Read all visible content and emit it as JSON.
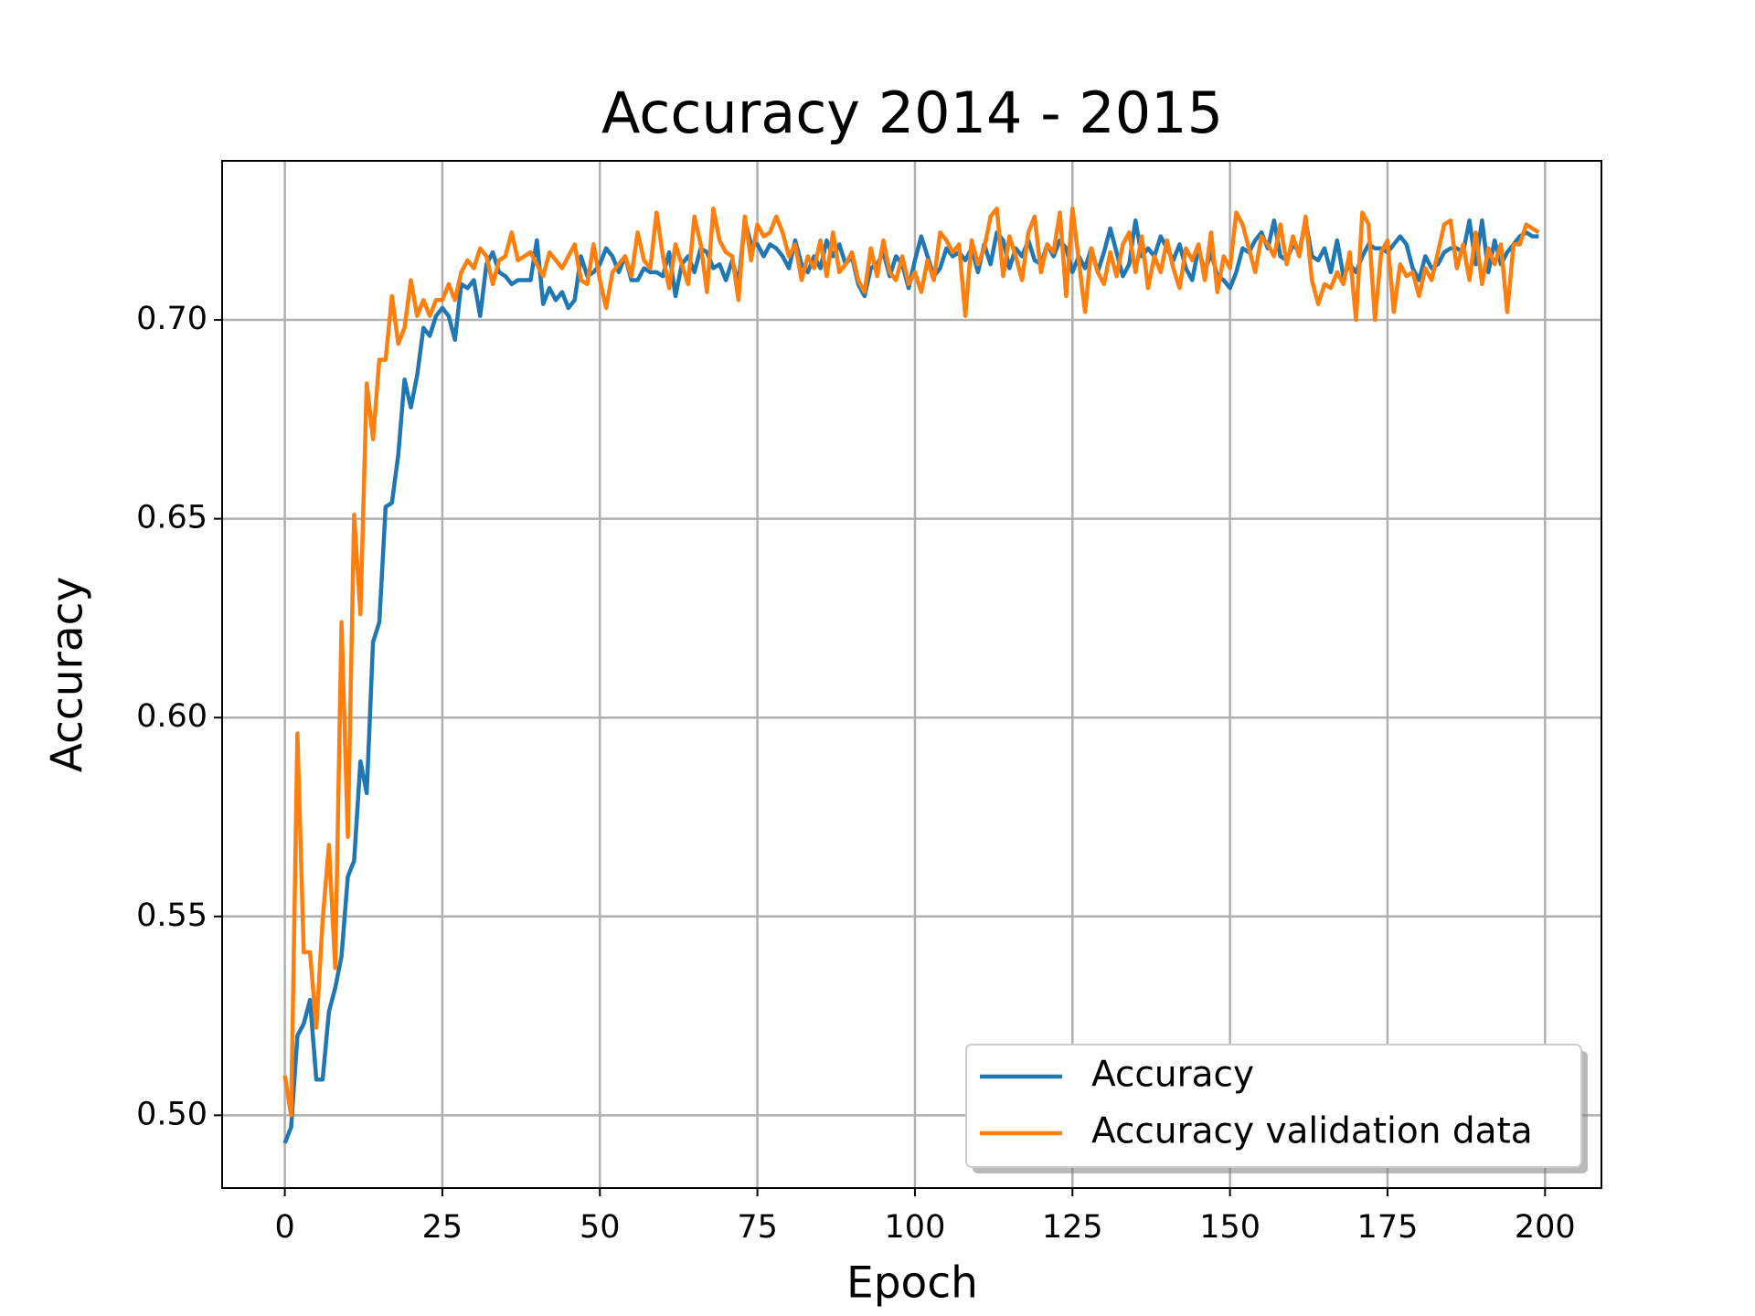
{
  "chart_data": {
    "type": "line",
    "title": "Accuracy 2014 - 2015",
    "x_label": "Epoch",
    "y_label": "Accuracy",
    "x": [
      0,
      1,
      2,
      3,
      4,
      5,
      6,
      7,
      8,
      9,
      10,
      11,
      12,
      13,
      14,
      15,
      16,
      17,
      18,
      19,
      20,
      21,
      22,
      23,
      24,
      25,
      26,
      27,
      28,
      29,
      30,
      31,
      32,
      33,
      34,
      35,
      36,
      37,
      38,
      39,
      40,
      41,
      42,
      43,
      44,
      45,
      46,
      47,
      48,
      49,
      50,
      51,
      52,
      53,
      54,
      55,
      56,
      57,
      58,
      59,
      60,
      61,
      62,
      63,
      64,
      65,
      66,
      67,
      68,
      69,
      70,
      71,
      72,
      73,
      74,
      75,
      76,
      77,
      78,
      79,
      80,
      81,
      82,
      83,
      84,
      85,
      86,
      87,
      88,
      89,
      90,
      91,
      92,
      93,
      94,
      95,
      96,
      97,
      98,
      99,
      100,
      101,
      102,
      103,
      104,
      105,
      106,
      107,
      108,
      109,
      110,
      111,
      112,
      113,
      114,
      115,
      116,
      117,
      118,
      119,
      120,
      121,
      122,
      123,
      124,
      125,
      126,
      127,
      128,
      129,
      130,
      131,
      132,
      133,
      134,
      135,
      136,
      137,
      138,
      139,
      140,
      141,
      142,
      143,
      144,
      145,
      146,
      147,
      148,
      149,
      150,
      151,
      152,
      153,
      154,
      155,
      156,
      157,
      158,
      159,
      160,
      161,
      162,
      163,
      164,
      165,
      166,
      167,
      168,
      169,
      170,
      171,
      172,
      173,
      174,
      175,
      176,
      177,
      178,
      179,
      180,
      181,
      182,
      183,
      184,
      185,
      186,
      187,
      188,
      189,
      190,
      191,
      192,
      193,
      194,
      195,
      196,
      197,
      198,
      199
    ],
    "series": [
      {
        "name": "Accuracy",
        "color": "#1f77b4",
        "values": [
          0.493,
          0.497,
          0.52,
          0.523,
          0.529,
          0.509,
          0.509,
          0.526,
          0.532,
          0.54,
          0.56,
          0.564,
          0.589,
          0.581,
          0.619,
          0.624,
          0.653,
          0.654,
          0.666,
          0.685,
          0.678,
          0.686,
          0.698,
          0.696,
          0.701,
          0.703,
          0.701,
          0.695,
          0.709,
          0.708,
          0.71,
          0.701,
          0.714,
          0.717,
          0.712,
          0.711,
          0.709,
          0.71,
          0.71,
          0.71,
          0.72,
          0.704,
          0.708,
          0.705,
          0.707,
          0.703,
          0.705,
          0.716,
          0.711,
          0.712,
          0.714,
          0.718,
          0.716,
          0.712,
          0.716,
          0.71,
          0.71,
          0.713,
          0.712,
          0.712,
          0.711,
          0.717,
          0.706,
          0.714,
          0.716,
          0.712,
          0.718,
          0.717,
          0.713,
          0.714,
          0.71,
          0.715,
          0.709,
          0.725,
          0.719,
          0.719,
          0.716,
          0.719,
          0.718,
          0.716,
          0.713,
          0.72,
          0.714,
          0.712,
          0.716,
          0.713,
          0.72,
          0.716,
          0.719,
          0.714,
          0.716,
          0.709,
          0.706,
          0.713,
          0.714,
          0.717,
          0.711,
          0.716,
          0.714,
          0.708,
          0.715,
          0.721,
          0.716,
          0.711,
          0.713,
          0.718,
          0.716,
          0.717,
          0.715,
          0.718,
          0.712,
          0.719,
          0.714,
          0.722,
          0.72,
          0.713,
          0.718,
          0.716,
          0.72,
          0.715,
          0.714,
          0.719,
          0.716,
          0.72,
          0.718,
          0.712,
          0.716,
          0.713,
          0.718,
          0.712,
          0.717,
          0.723,
          0.717,
          0.711,
          0.714,
          0.725,
          0.716,
          0.718,
          0.716,
          0.721,
          0.718,
          0.715,
          0.719,
          0.713,
          0.71,
          0.718,
          0.712,
          0.717,
          0.711,
          0.71,
          0.708,
          0.712,
          0.718,
          0.717,
          0.72,
          0.722,
          0.718,
          0.725,
          0.716,
          0.715,
          0.719,
          0.717,
          0.725,
          0.716,
          0.715,
          0.718,
          0.712,
          0.72,
          0.711,
          0.714,
          0.712,
          0.716,
          0.719,
          0.718,
          0.718,
          0.717,
          0.719,
          0.721,
          0.719,
          0.713,
          0.71,
          0.716,
          0.713,
          0.714,
          0.717,
          0.718,
          0.718,
          0.717,
          0.725,
          0.714,
          0.725,
          0.712,
          0.72,
          0.714,
          0.717,
          0.719,
          0.721,
          0.722,
          0.721,
          0.721
        ]
      },
      {
        "name": "Accuracy validation data",
        "color": "#ff7f0e",
        "values": [
          0.51,
          0.5,
          0.596,
          0.541,
          0.541,
          0.522,
          0.549,
          0.568,
          0.537,
          0.624,
          0.57,
          0.651,
          0.626,
          0.684,
          0.67,
          0.69,
          0.69,
          0.706,
          0.694,
          0.698,
          0.71,
          0.701,
          0.705,
          0.701,
          0.705,
          0.705,
          0.709,
          0.705,
          0.712,
          0.715,
          0.713,
          0.718,
          0.716,
          0.709,
          0.715,
          0.716,
          0.722,
          0.715,
          0.716,
          0.717,
          0.714,
          0.711,
          0.717,
          0.715,
          0.713,
          0.716,
          0.719,
          0.71,
          0.709,
          0.719,
          0.71,
          0.703,
          0.712,
          0.714,
          0.716,
          0.711,
          0.722,
          0.715,
          0.713,
          0.727,
          0.716,
          0.708,
          0.719,
          0.714,
          0.709,
          0.726,
          0.719,
          0.707,
          0.728,
          0.72,
          0.717,
          0.716,
          0.705,
          0.726,
          0.715,
          0.724,
          0.721,
          0.722,
          0.726,
          0.722,
          0.716,
          0.719,
          0.71,
          0.716,
          0.713,
          0.72,
          0.711,
          0.722,
          0.712,
          0.714,
          0.717,
          0.71,
          0.707,
          0.718,
          0.711,
          0.72,
          0.712,
          0.71,
          0.716,
          0.709,
          0.712,
          0.707,
          0.715,
          0.71,
          0.722,
          0.72,
          0.717,
          0.719,
          0.701,
          0.72,
          0.714,
          0.718,
          0.726,
          0.728,
          0.711,
          0.721,
          0.716,
          0.71,
          0.722,
          0.726,
          0.712,
          0.719,
          0.717,
          0.727,
          0.706,
          0.728,
          0.715,
          0.702,
          0.718,
          0.712,
          0.709,
          0.717,
          0.711,
          0.719,
          0.722,
          0.712,
          0.721,
          0.708,
          0.716,
          0.712,
          0.72,
          0.713,
          0.708,
          0.718,
          0.715,
          0.719,
          0.71,
          0.722,
          0.707,
          0.716,
          0.713,
          0.727,
          0.724,
          0.718,
          0.712,
          0.721,
          0.719,
          0.716,
          0.724,
          0.714,
          0.721,
          0.716,
          0.726,
          0.71,
          0.704,
          0.709,
          0.708,
          0.712,
          0.709,
          0.717,
          0.7,
          0.727,
          0.724,
          0.7,
          0.717,
          0.72,
          0.702,
          0.714,
          0.711,
          0.712,
          0.706,
          0.713,
          0.71,
          0.717,
          0.724,
          0.725,
          0.713,
          0.719,
          0.71,
          0.722,
          0.709,
          0.718,
          0.714,
          0.719,
          0.702,
          0.719,
          0.719,
          0.724,
          0.723,
          0.722
        ]
      }
    ],
    "xlim": [
      -9.95,
      208.95
    ],
    "xticks": [
      0,
      25,
      50,
      75,
      100,
      125,
      150,
      175,
      200
    ],
    "ylim": [
      0.4817,
      0.74
    ],
    "yticks": [
      {
        "value": 0.5,
        "label": "0.50"
      },
      {
        "value": 0.55,
        "label": "0.55"
      },
      {
        "value": 0.6,
        "label": "0.60"
      },
      {
        "value": 0.65,
        "label": "0.65"
      },
      {
        "value": 0.7,
        "label": "0.70"
      }
    ],
    "grid": true,
    "legend": "lower right"
  }
}
